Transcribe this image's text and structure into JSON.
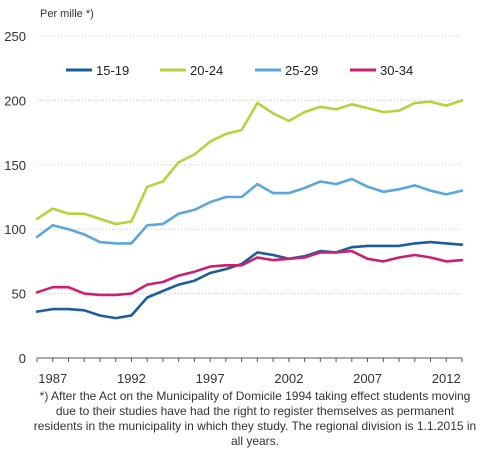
{
  "chart_data": {
    "type": "line",
    "ylabel": "Per mille  *)",
    "xlabel": "",
    "ylim": [
      0,
      250
    ],
    "yticks": [
      0,
      50,
      100,
      150,
      200,
      250
    ],
    "xlim": [
      1986,
      2013
    ],
    "xticks": [
      1987,
      1992,
      1997,
      2002,
      2007,
      2012
    ],
    "grid": "horizontal",
    "legend": "top",
    "x": [
      1986,
      1987,
      1988,
      1989,
      1990,
      1991,
      1992,
      1993,
      1994,
      1995,
      1996,
      1997,
      1998,
      1999,
      2000,
      2001,
      2002,
      2003,
      2004,
      2005,
      2006,
      2007,
      2008,
      2009,
      2010,
      2011,
      2012,
      2013
    ],
    "series": [
      {
        "name": "15-19",
        "color": "#1a5e9e",
        "values": [
          36,
          38,
          38,
          37,
          33,
          31,
          33,
          47,
          52,
          57,
          60,
          66,
          69,
          73,
          82,
          80,
          77,
          79,
          83,
          82,
          86,
          87,
          87,
          87,
          89,
          90,
          89,
          88
        ]
      },
      {
        "name": "20-24",
        "color": "#b5d33d",
        "values": [
          108,
          116,
          112,
          112,
          108,
          104,
          106,
          133,
          137,
          152,
          158,
          168,
          174,
          177,
          198,
          190,
          184,
          191,
          195,
          193,
          197,
          194,
          191,
          192,
          198,
          199,
          196,
          200
        ]
      },
      {
        "name": "25-29",
        "color": "#5ba7dd",
        "values": [
          94,
          103,
          100,
          96,
          90,
          89,
          89,
          103,
          104,
          112,
          115,
          121,
          125,
          125,
          135,
          128,
          128,
          132,
          137,
          135,
          139,
          133,
          129,
          131,
          134,
          130,
          127,
          130
        ]
      },
      {
        "name": "30-34",
        "color": "#cc1f6d",
        "values": [
          51,
          55,
          55,
          50,
          49,
          49,
          50,
          57,
          59,
          64,
          67,
          71,
          72,
          72,
          78,
          76,
          77,
          78,
          82,
          82,
          83,
          77,
          75,
          78,
          80,
          78,
          75,
          76
        ]
      }
    ],
    "footnote": "*)  After the Act on the Municipality of Domicile 1994 taking effect students moving due to their studies have had the right to register themselves as permanent residents in the municipality in which they study. The regional division  is 1.1.2015 in all years."
  }
}
